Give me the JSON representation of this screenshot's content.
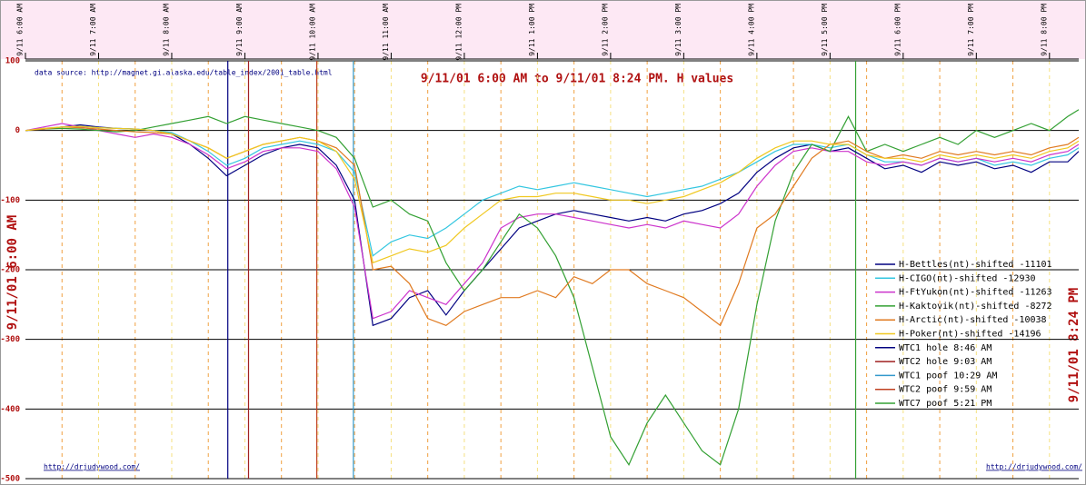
{
  "chart_data": {
    "type": "line",
    "title": "9/11/01 6:00 AM  to  9/11/01 8:24 PM. H values",
    "source": "data source:  http://magnet.gi.alaska.edu/table_index/2001_table.html",
    "left_label": "9/11/01 6:00 AM",
    "right_label": "9/11/01 8:24 PM",
    "footer_left": "http://drjudywood.com/",
    "footer_right": "http://drjudywood.com/",
    "x": [
      "9/11 6:00 AM",
      "9/11 6:15 AM",
      "9/11 6:30 AM",
      "9/11 6:45 AM",
      "9/11 7:00 AM",
      "9/11 7:15 AM",
      "9/11 7:30 AM",
      "9/11 7:45 AM",
      "9/11 8:00 AM",
      "9/11 8:15 AM",
      "9/11 8:30 AM",
      "9/11 8:45 AM",
      "9/11 9:00 AM",
      "9/11 9:15 AM",
      "9/11 9:30 AM",
      "9/11 9:45 AM",
      "9/11 10:00 AM",
      "9/11 10:15 AM",
      "9/11 10:30 AM",
      "9/11 10:45 AM",
      "9/11 11:00 AM",
      "9/11 11:15 AM",
      "9/11 11:30 AM",
      "9/11 11:45 AM",
      "9/11 12:00 PM",
      "9/11 12:15 PM",
      "9/11 12:30 PM",
      "9/11 12:45 PM",
      "9/11 1:00 PM",
      "9/11 1:15 PM",
      "9/11 1:30 PM",
      "9/11 1:45 PM",
      "9/11 2:00 PM",
      "9/11 2:15 PM",
      "9/11 2:30 PM",
      "9/11 2:45 PM",
      "9/11 3:00 PM",
      "9/11 3:15 PM",
      "9/11 3:30 PM",
      "9/11 3:45 PM",
      "9/11 4:00 PM",
      "9/11 4:15 PM",
      "9/11 4:30 PM",
      "9/11 4:45 PM",
      "9/11 5:00 PM",
      "9/11 5:15 PM",
      "9/11 5:30 PM",
      "9/11 5:45 PM",
      "9/11 6:00 PM",
      "9/11 6:15 PM",
      "9/11 6:30 PM",
      "9/11 6:45 PM",
      "9/11 7:00 PM",
      "9/11 7:15 PM",
      "9/11 7:30 PM",
      "9/11 7:45 PM",
      "9/11 8:00 PM",
      "9/11 8:15 PM",
      "9/11 8:24 PM"
    ],
    "xlim": [
      "9/11 6:00 AM",
      "9/11 8:24 PM"
    ],
    "xticks": [
      "9/11 6:00 AM",
      "9/11 7:00 AM",
      "9/11 8:00 AM",
      "9/11 9:00 AM",
      "9/11 10:00 AM",
      "9/11 11:00 AM",
      "9/11 12:00 PM",
      "9/11 1:00 PM",
      "9/11 2:00 PM",
      "9/11 3:00 PM",
      "9/11 4:00 PM",
      "9/11 5:00 PM",
      "9/11 6:00 PM",
      "9/11 7:00 PM",
      "9/11 8:00 PM"
    ],
    "ylim": [
      -500,
      100
    ],
    "yticks": [
      100,
      0,
      -100,
      -200,
      -300,
      -400,
      -500
    ],
    "grid": true,
    "series": [
      {
        "name": "H-Bettles(nt)-shifted -11101",
        "color": "#000080",
        "values": [
          0,
          2,
          5,
          8,
          5,
          3,
          2,
          0,
          -5,
          -20,
          -40,
          -65,
          -50,
          -35,
          -25,
          -20,
          -25,
          -50,
          -100,
          -280,
          -270,
          -240,
          -230,
          -265,
          -230,
          -200,
          -170,
          -140,
          -130,
          -120,
          -115,
          -120,
          -125,
          -130,
          -125,
          -130,
          -120,
          -115,
          -105,
          -90,
          -60,
          -40,
          -25,
          -20,
          -30,
          -25,
          -40,
          -55,
          -50,
          -60,
          -45,
          -50,
          -45,
          -55,
          -50,
          -60,
          -45,
          -45,
          -30
        ]
      },
      {
        "name": "H-CIGO(nt)-shifted -12930",
        "color": "#33c6e0",
        "values": [
          0,
          3,
          5,
          6,
          4,
          3,
          2,
          0,
          -3,
          -15,
          -30,
          -50,
          -40,
          -25,
          -20,
          -15,
          -20,
          -30,
          -60,
          -180,
          -160,
          -150,
          -155,
          -140,
          -120,
          -100,
          -90,
          -80,
          -85,
          -80,
          -75,
          -80,
          -85,
          -90,
          -95,
          -90,
          -85,
          -80,
          -70,
          -60,
          -45,
          -30,
          -20,
          -20,
          -25,
          -20,
          -35,
          -45,
          -45,
          -50,
          -40,
          -45,
          -40,
          -50,
          -45,
          -50,
          -40,
          -35,
          -25
        ]
      },
      {
        "name": "H-FtYukon(nt)-shifted -11263",
        "color": "#cc33cc",
        "values": [
          0,
          5,
          10,
          5,
          0,
          -5,
          -10,
          -5,
          -10,
          -20,
          -35,
          -55,
          -45,
          -30,
          -25,
          -25,
          -30,
          -55,
          -110,
          -270,
          -260,
          -230,
          -240,
          -250,
          -220,
          -190,
          -140,
          -125,
          -120,
          -120,
          -125,
          -130,
          -135,
          -140,
          -135,
          -140,
          -130,
          -135,
          -140,
          -120,
          -80,
          -50,
          -30,
          -25,
          -30,
          -30,
          -45,
          -50,
          -45,
          -50,
          -40,
          -45,
          -40,
          -45,
          -40,
          -45,
          -35,
          -30,
          -20
        ]
      },
      {
        "name": "H-Kaktovik(nt)-shifted -8272",
        "color": "#33a033",
        "values": [
          0,
          2,
          3,
          2,
          0,
          -2,
          0,
          5,
          10,
          15,
          20,
          10,
          20,
          15,
          10,
          5,
          0,
          -10,
          -40,
          -110,
          -100,
          -120,
          -130,
          -190,
          -230,
          -200,
          -160,
          -120,
          -140,
          -180,
          -240,
          -340,
          -440,
          -480,
          -420,
          -380,
          -420,
          -460,
          -480,
          -400,
          -250,
          -130,
          -60,
          -20,
          -30,
          20,
          -30,
          -20,
          -30,
          -20,
          -10,
          -20,
          0,
          -10,
          0,
          10,
          0,
          20,
          30
        ]
      },
      {
        "name": "H-Arctic(nt)-shifted -10038",
        "color": "#e07a20",
        "values": [
          0,
          2,
          5,
          4,
          2,
          0,
          -2,
          -3,
          -5,
          -15,
          -25,
          -40,
          -30,
          -20,
          -15,
          -10,
          -15,
          -25,
          -50,
          -200,
          -195,
          -220,
          -270,
          -280,
          -260,
          -250,
          -240,
          -240,
          -230,
          -240,
          -210,
          -220,
          -200,
          -200,
          -220,
          -230,
          -240,
          -260,
          -280,
          -220,
          -140,
          -120,
          -80,
          -40,
          -20,
          -15,
          -30,
          -40,
          -35,
          -40,
          -30,
          -35,
          -30,
          -35,
          -30,
          -35,
          -25,
          -20,
          -10
        ]
      },
      {
        "name": "H-Poker(nt)-shifted -14196",
        "color": "#f0c820",
        "values": [
          0,
          3,
          5,
          6,
          4,
          3,
          2,
          0,
          -5,
          -15,
          -25,
          -40,
          -30,
          -20,
          -15,
          -10,
          -15,
          -30,
          -70,
          -190,
          -180,
          -170,
          -175,
          -165,
          -140,
          -120,
          -100,
          -95,
          -95,
          -90,
          -90,
          -95,
          -100,
          -100,
          -105,
          -100,
          -95,
          -85,
          -75,
          -60,
          -40,
          -25,
          -15,
          -15,
          -20,
          -20,
          -35,
          -40,
          -40,
          -45,
          -35,
          -40,
          -35,
          -40,
          -35,
          -40,
          -30,
          -25,
          -15
        ]
      }
    ],
    "events": [
      {
        "name": "WTC1 hole 8:46 AM",
        "x": "9/11 8:46 AM",
        "color": "#000080"
      },
      {
        "name": "WTC2 hole 9:03 AM",
        "x": "9/11 9:03 AM",
        "color": "#a02020"
      },
      {
        "name": "WTC1 poof 10:29 AM",
        "x": "9/11 10:29 AM",
        "color": "#3399cc"
      },
      {
        "name": "WTC2 poof 9:59 AM",
        "x": "9/11 9:59 AM",
        "color": "#c04020"
      },
      {
        "name": "WTC7 poof 5:21 PM",
        "x": "9/11 5:21 PM",
        "color": "#33a033"
      }
    ]
  }
}
